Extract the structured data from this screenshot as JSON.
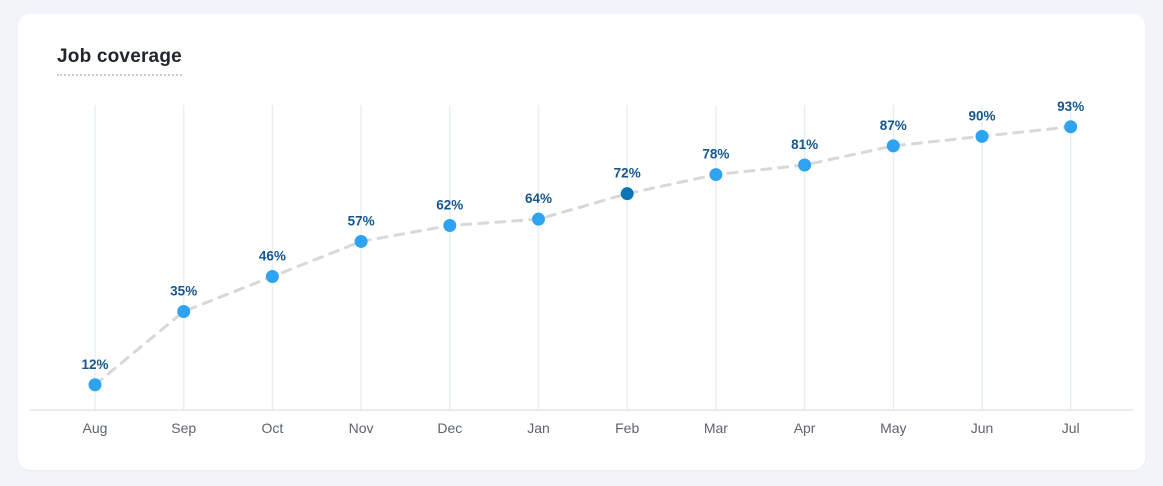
{
  "page": {
    "background": "#F1F5F9",
    "card_background": "#FFFFFF"
  },
  "header": {
    "title": "Job coverage"
  },
  "chart_data": {
    "type": "line",
    "title": "Job coverage",
    "categories": [
      "Aug",
      "Sep",
      "Oct",
      "Nov",
      "Dec",
      "Jan",
      "Feb",
      "Mar",
      "Apr",
      "May",
      "Jun",
      "Jul"
    ],
    "values": [
      12,
      35,
      46,
      57,
      62,
      64,
      72,
      78,
      81,
      87,
      90,
      93
    ],
    "labels": [
      "12%",
      "35%",
      "46%",
      "57%",
      "62%",
      "64%",
      "72%",
      "78%",
      "81%",
      "87%",
      "90%",
      "93%"
    ],
    "highlight_index": 6,
    "highlighted_point": {
      "category": "Feb",
      "value": 72,
      "label": "72%"
    },
    "xlabel": "",
    "ylabel": "",
    "ylim": [
      0,
      100
    ],
    "grid": "vertical-only",
    "legend": "none",
    "line_style": "dashed",
    "colors": {
      "point": "#2EA3F2",
      "point_highlight": "#0E74B9",
      "line": "#D8D8D8",
      "value_label": "#15568D",
      "tick_label": "#5B6470",
      "gridline": "#E8EFF3",
      "axis_line": "#E3E6EA"
    }
  }
}
